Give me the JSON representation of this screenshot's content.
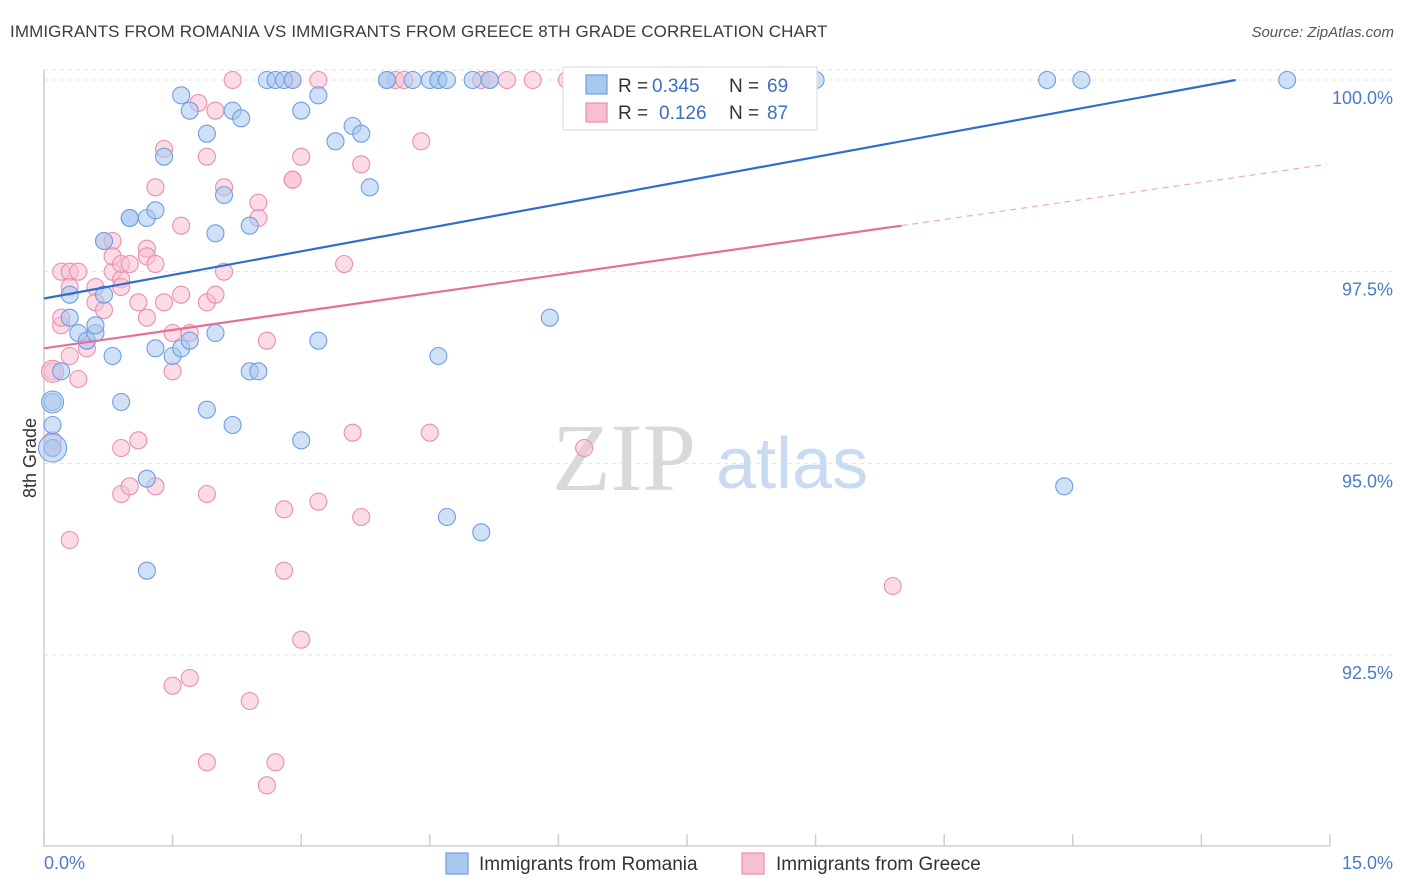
{
  "title": "IMMIGRANTS FROM ROMANIA VS IMMIGRANTS FROM GREECE 8TH GRADE CORRELATION CHART",
  "source": "Source: ZipAtlas.com",
  "watermark": {
    "zip": "ZIP",
    "atlas": "atlas"
  },
  "legend": {
    "rows": [
      {
        "r_label": "R =",
        "r_value": "0.345",
        "n_label": "N =",
        "n_value": "69"
      },
      {
        "r_label": "R =",
        "r_value": "0.126",
        "n_label": "N =",
        "n_value": "87"
      }
    ]
  },
  "bottom_legend": {
    "romania": "Immigrants from Romania",
    "greece": "Immigrants from Greece"
  },
  "colors": {
    "romania_fill": "#a9c8f0",
    "romania_stroke": "#6f9ee0",
    "romania_line": "#2f6fcc",
    "greece_fill": "#f8bfd1",
    "greece_stroke": "#ea8fae",
    "greece_line": "#e46f9a",
    "tick_text": "#4a7cc6",
    "grid": "#e2e2e2"
  },
  "chart_data": {
    "type": "scatter",
    "xlabel": "",
    "ylabel": "8th Grade",
    "xlim": [
      0,
      15
    ],
    "ylim": [
      90.0,
      100.3
    ],
    "x_tick_labels": {
      "left": "0.0%",
      "right": "15.0%"
    },
    "y_ticks": [
      {
        "value": 100.0,
        "label": "100.0%"
      },
      {
        "value": 97.5,
        "label": "97.5%"
      },
      {
        "value": 95.0,
        "label": "95.0%"
      },
      {
        "value": 92.5,
        "label": "92.5%"
      }
    ],
    "grid": true,
    "legend_position": "top-center",
    "series": [
      {
        "name": "Immigrants from Romania",
        "trend": {
          "x0": 0.0,
          "y0": 97.15,
          "x1": 13.9,
          "y1": 100.0,
          "dashed_to": null
        },
        "points": [
          [
            0.1,
            95.5
          ],
          [
            0.1,
            95.2
          ],
          [
            0.1,
            95.8
          ],
          [
            0.2,
            96.2
          ],
          [
            0.3,
            97.2
          ],
          [
            0.3,
            96.9
          ],
          [
            0.4,
            96.7
          ],
          [
            0.5,
            96.6
          ],
          [
            0.6,
            96.7
          ],
          [
            0.6,
            96.8
          ],
          [
            0.7,
            97.2
          ],
          [
            0.7,
            97.9
          ],
          [
            0.8,
            96.4
          ],
          [
            0.9,
            95.8
          ],
          [
            1.0,
            98.2
          ],
          [
            1.0,
            98.2
          ],
          [
            1.2,
            98.2
          ],
          [
            1.3,
            98.3
          ],
          [
            1.2,
            94.8
          ],
          [
            1.2,
            93.6
          ],
          [
            1.4,
            99.0
          ],
          [
            1.3,
            96.5
          ],
          [
            1.5,
            96.4
          ],
          [
            1.6,
            96.5
          ],
          [
            1.7,
            96.6
          ],
          [
            1.6,
            99.8
          ],
          [
            1.7,
            99.6
          ],
          [
            1.9,
            99.3
          ],
          [
            1.9,
            95.7
          ],
          [
            2.0,
            98.0
          ],
          [
            2.0,
            96.7
          ],
          [
            2.1,
            98.5
          ],
          [
            2.2,
            95.5
          ],
          [
            2.2,
            99.6
          ],
          [
            2.3,
            99.5
          ],
          [
            2.4,
            98.1
          ],
          [
            2.4,
            96.2
          ],
          [
            2.5,
            96.2
          ],
          [
            2.6,
            100.0
          ],
          [
            2.7,
            100.0
          ],
          [
            2.8,
            100.0
          ],
          [
            2.9,
            100.0
          ],
          [
            3.0,
            99.6
          ],
          [
            3.0,
            95.3
          ],
          [
            3.2,
            99.8
          ],
          [
            3.2,
            96.6
          ],
          [
            3.4,
            99.2
          ],
          [
            3.6,
            99.4
          ],
          [
            3.7,
            99.3
          ],
          [
            3.8,
            98.6
          ],
          [
            4.0,
            100.0
          ],
          [
            4.0,
            100.0
          ],
          [
            4.3,
            100.0
          ],
          [
            4.5,
            100.0
          ],
          [
            4.6,
            100.0
          ],
          [
            4.6,
            100.0
          ],
          [
            4.7,
            100.0
          ],
          [
            4.6,
            96.4
          ],
          [
            4.7,
            94.3
          ],
          [
            5.1,
            94.1
          ],
          [
            5.0,
            100.0
          ],
          [
            5.2,
            100.0
          ],
          [
            5.9,
            96.9
          ],
          [
            6.4,
            100.0
          ],
          [
            9.0,
            100.0
          ],
          [
            11.7,
            100.0
          ],
          [
            12.1,
            100.0
          ],
          [
            11.9,
            94.7
          ],
          [
            14.5,
            100.0
          ]
        ]
      },
      {
        "name": "Immigrants from Greece",
        "trend": {
          "x0": 0.0,
          "y0": 96.5,
          "x1": 10.0,
          "y1": 98.1,
          "dashed_to": {
            "x": 14.96,
            "y": 98.9
          }
        },
        "points": [
          [
            0.1,
            96.2
          ],
          [
            0.1,
            95.3
          ],
          [
            0.1,
            95.2
          ],
          [
            0.2,
            96.8
          ],
          [
            0.2,
            96.9
          ],
          [
            0.2,
            97.5
          ],
          [
            0.3,
            94.0
          ],
          [
            0.3,
            97.5
          ],
          [
            0.3,
            97.3
          ],
          [
            0.3,
            96.4
          ],
          [
            0.4,
            96.1
          ],
          [
            0.4,
            97.5
          ],
          [
            0.5,
            96.6
          ],
          [
            0.5,
            96.5
          ],
          [
            0.6,
            97.3
          ],
          [
            0.6,
            97.1
          ],
          [
            0.7,
            97.0
          ],
          [
            0.7,
            97.9
          ],
          [
            0.8,
            97.5
          ],
          [
            0.8,
            97.9
          ],
          [
            0.8,
            97.7
          ],
          [
            0.9,
            97.4
          ],
          [
            0.9,
            97.6
          ],
          [
            0.9,
            97.3
          ],
          [
            0.9,
            95.2
          ],
          [
            0.9,
            94.6
          ],
          [
            1.0,
            94.7
          ],
          [
            1.0,
            97.6
          ],
          [
            1.1,
            97.1
          ],
          [
            1.1,
            95.3
          ],
          [
            1.2,
            97.8
          ],
          [
            1.2,
            97.7
          ],
          [
            1.2,
            96.9
          ],
          [
            1.3,
            98.6
          ],
          [
            1.3,
            97.6
          ],
          [
            1.3,
            94.7
          ],
          [
            1.4,
            99.1
          ],
          [
            1.4,
            97.1
          ],
          [
            1.5,
            96.2
          ],
          [
            1.5,
            96.7
          ],
          [
            1.5,
            92.1
          ],
          [
            1.6,
            98.1
          ],
          [
            1.6,
            97.2
          ],
          [
            1.7,
            96.7
          ],
          [
            1.7,
            92.2
          ],
          [
            1.8,
            99.7
          ],
          [
            1.9,
            99.0
          ],
          [
            1.9,
            94.6
          ],
          [
            1.9,
            97.1
          ],
          [
            1.9,
            91.1
          ],
          [
            2.0,
            97.2
          ],
          [
            2.0,
            99.6
          ],
          [
            2.1,
            98.6
          ],
          [
            2.1,
            97.5
          ],
          [
            2.2,
            100.0
          ],
          [
            2.4,
            91.9
          ],
          [
            2.5,
            98.4
          ],
          [
            2.5,
            98.2
          ],
          [
            2.6,
            96.6
          ],
          [
            2.7,
            91.1
          ],
          [
            2.8,
            94.4
          ],
          [
            2.8,
            93.6
          ],
          [
            2.9,
            98.7
          ],
          [
            2.9,
            98.7
          ],
          [
            2.9,
            100.0
          ],
          [
            3.0,
            99.0
          ],
          [
            3.0,
            92.7
          ],
          [
            3.2,
            100.0
          ],
          [
            3.2,
            94.5
          ],
          [
            3.5,
            97.6
          ],
          [
            3.6,
            95.4
          ],
          [
            3.7,
            98.9
          ],
          [
            3.7,
            94.3
          ],
          [
            4.1,
            100.0
          ],
          [
            4.2,
            100.0
          ],
          [
            4.4,
            99.2
          ],
          [
            4.5,
            95.4
          ],
          [
            5.1,
            100.0
          ],
          [
            5.2,
            100.0
          ],
          [
            5.4,
            100.0
          ],
          [
            5.7,
            100.0
          ],
          [
            6.1,
            100.0
          ],
          [
            6.3,
            95.2
          ],
          [
            6.6,
            100.0
          ],
          [
            6.8,
            100.0
          ],
          [
            9.9,
            93.4
          ],
          [
            2.6,
            90.8
          ]
        ]
      }
    ]
  }
}
